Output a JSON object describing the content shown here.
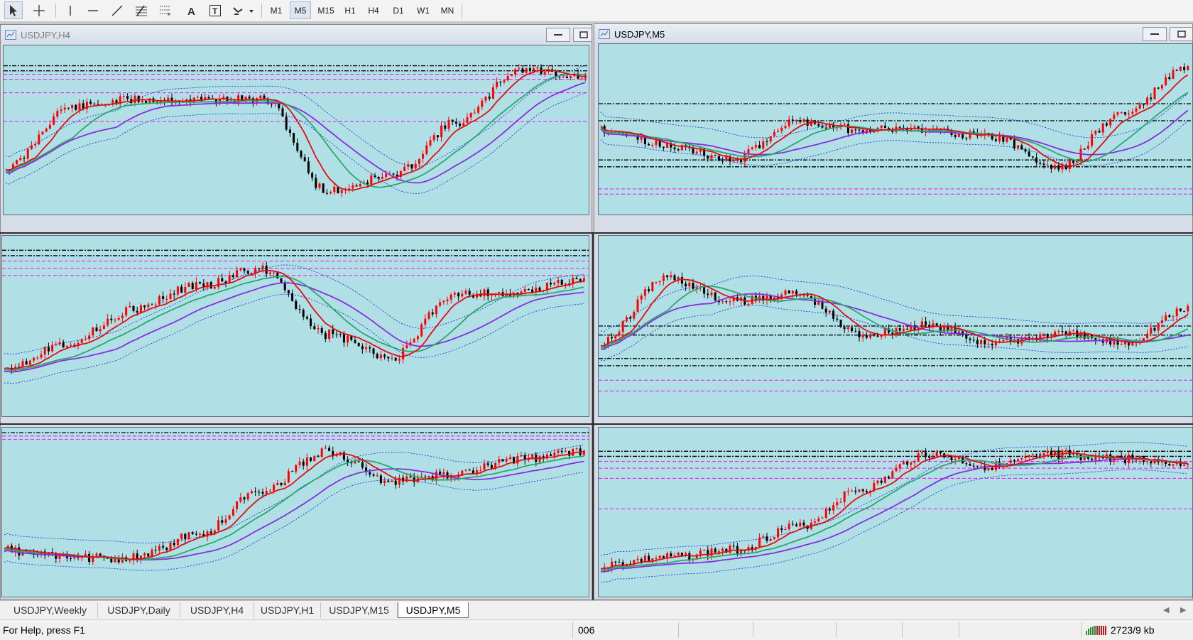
{
  "toolbar": {
    "tools": [
      "cursor-arrow",
      "crosshair",
      "vertical-line",
      "horizontal-line",
      "trendline",
      "fibonacci",
      "channel",
      "text",
      "text-label",
      "shapes"
    ],
    "timeframes": [
      "M1",
      "M5",
      "M15",
      "H1",
      "H4",
      "D1",
      "W1",
      "MN"
    ],
    "active_timeframe": "M5"
  },
  "windows": [
    {
      "title": "USDJPY,H4",
      "active": false
    },
    {
      "title": "USDJPY,M5",
      "active": true
    }
  ],
  "tabs": [
    "USDJPY,Weekly",
    "USDJPY,Daily",
    "USDJPY,H4",
    "USDJPY,H1",
    "USDJPY,M15",
    "USDJPY,M5"
  ],
  "active_tab": "USDJPY,M5",
  "status": {
    "help": "For Help, press F1",
    "profile": "006",
    "traffic": "2723/9 kb"
  },
  "colors": {
    "chart_bg": "#b0e0e6",
    "bull": "#ff0000",
    "bear": "#000000",
    "ma_fast": "#e01010",
    "ma_mid": "#2aa86a",
    "ma_slow": "#8a2be2",
    "bands": "#1f3bd1",
    "level_dark": "#000000",
    "level_magenta": "#ff00ff"
  }
}
